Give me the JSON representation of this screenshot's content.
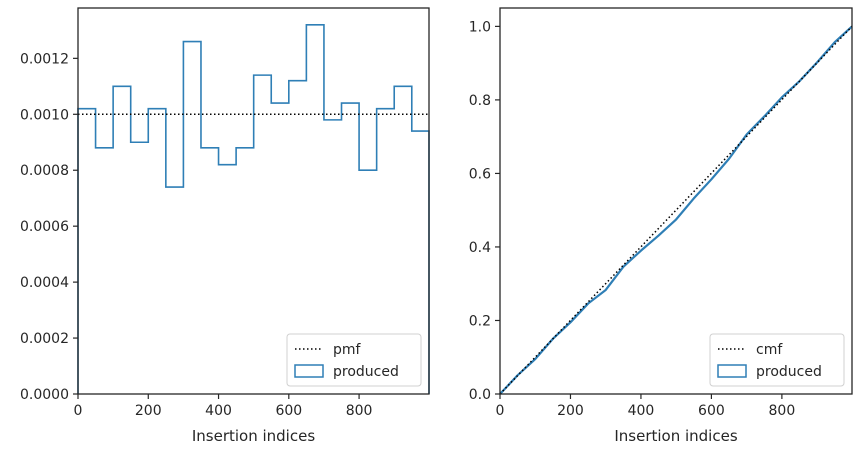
{
  "colors": {
    "hist": "#2f7fb6",
    "reference": "#000000",
    "axes": "#262626"
  },
  "chart_data": [
    {
      "type": "histogram-step",
      "xlabel": "Insertion indices",
      "ylabel": "",
      "xlim": [
        0,
        999
      ],
      "ylim": [
        0,
        0.00138
      ],
      "xticks": [
        0,
        200,
        400,
        600,
        800
      ],
      "xtick_labels": [
        "0",
        "200",
        "400",
        "600",
        "800"
      ],
      "yticks": [
        0,
        0.0002,
        0.0004,
        0.0006,
        0.0008,
        0.001,
        0.0012
      ],
      "ytick_labels": [
        "0.0000",
        "0.0002",
        "0.0004",
        "0.0006",
        "0.0008",
        "0.0010",
        "0.0012"
      ],
      "bin_edges": [
        0,
        50,
        100,
        150,
        200,
        250,
        300,
        350,
        400,
        450,
        500,
        550,
        600,
        650,
        700,
        750,
        800,
        850,
        900,
        950,
        999
      ],
      "series": [
        {
          "name": "produced",
          "style": "step",
          "values": [
            0.00102,
            0.00088,
            0.0011,
            0.0009,
            0.00102,
            0.00074,
            0.00126,
            0.00088,
            0.00082,
            0.00088,
            0.00114,
            0.00104,
            0.00112,
            0.00132,
            0.00098,
            0.00104,
            0.0008,
            0.00102,
            0.0011,
            0.00094
          ]
        },
        {
          "name": "pmf",
          "style": "dotted",
          "value": 0.001
        }
      ],
      "legend": {
        "position": "lower-right",
        "entries": [
          "pmf",
          "produced"
        ]
      },
      "grid": false
    },
    {
      "type": "line",
      "xlabel": "Insertion indices",
      "ylabel": "",
      "xlim": [
        0,
        999
      ],
      "ylim": [
        0,
        1.05
      ],
      "xticks": [
        0,
        200,
        400,
        600,
        800
      ],
      "xtick_labels": [
        "0",
        "200",
        "400",
        "600",
        "800"
      ],
      "yticks": [
        0,
        0.2,
        0.4,
        0.6,
        0.8,
        1.0
      ],
      "ytick_labels": [
        "0.0",
        "0.2",
        "0.4",
        "0.6",
        "0.8",
        "1.0"
      ],
      "series": [
        {
          "name": "cmf",
          "style": "dotted",
          "x": [
            0,
            999
          ],
          "y": [
            0,
            1.0
          ]
        },
        {
          "name": "produced",
          "style": "solid",
          "x": [
            0,
            50,
            100,
            150,
            200,
            250,
            300,
            350,
            400,
            450,
            500,
            550,
            600,
            650,
            700,
            750,
            800,
            850,
            900,
            950,
            999
          ],
          "y": [
            0,
            0.051,
            0.095,
            0.15,
            0.195,
            0.246,
            0.283,
            0.346,
            0.39,
            0.431,
            0.475,
            0.532,
            0.584,
            0.64,
            0.706,
            0.755,
            0.807,
            0.851,
            0.902,
            0.957,
            1.0
          ]
        }
      ],
      "legend": {
        "position": "lower-right",
        "entries": [
          "cmf",
          "produced"
        ]
      },
      "grid": false
    }
  ]
}
